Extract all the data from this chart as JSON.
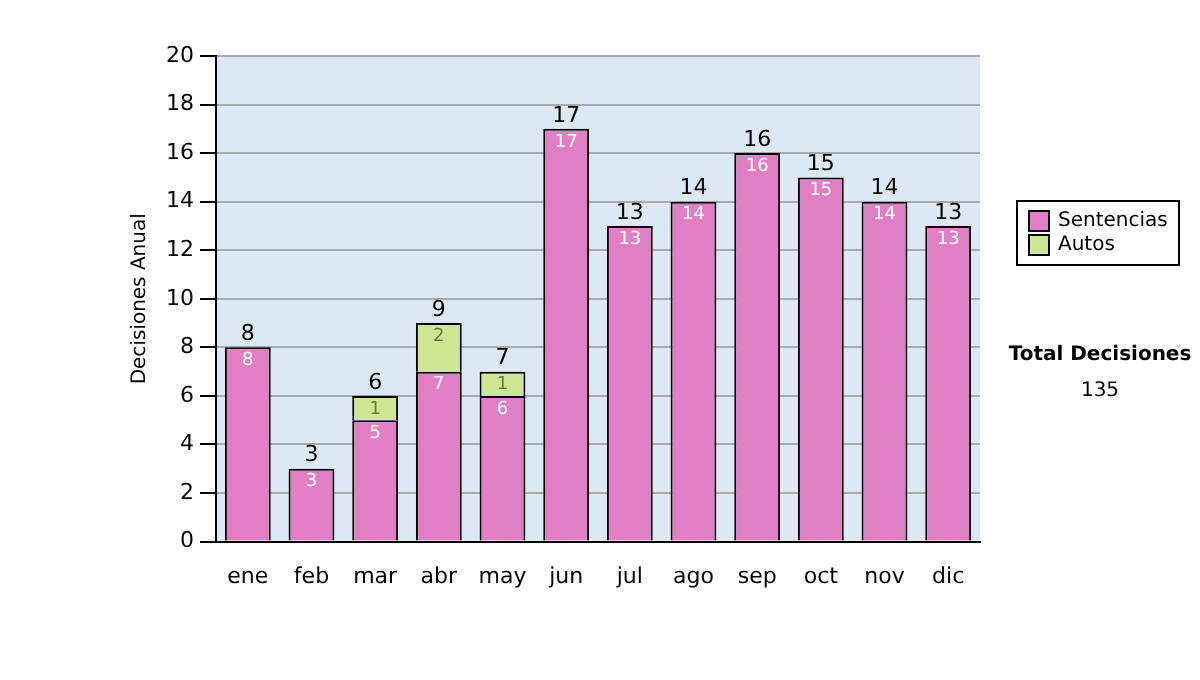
{
  "chart_data": {
    "type": "bar",
    "stacked": true,
    "ylabel": "Decisiones Anual",
    "categories": [
      "ene",
      "feb",
      "mar",
      "abr",
      "may",
      "jun",
      "jul",
      "ago",
      "sep",
      "oct",
      "nov",
      "dic"
    ],
    "series": [
      {
        "name": "Sentencias",
        "color": "#e07fc3",
        "values": [
          8,
          3,
          5,
          7,
          6,
          17,
          13,
          14,
          16,
          15,
          14,
          13
        ],
        "value_labels": [
          "8",
          "3",
          "5",
          "7",
          "6",
          "17",
          "13",
          "14",
          "16",
          "15",
          "14",
          "13"
        ]
      },
      {
        "name": "Autos",
        "color": "#cfe594",
        "values": [
          0,
          0,
          1,
          2,
          1,
          0,
          0,
          0,
          0,
          0,
          0,
          0
        ],
        "value_labels": [
          null,
          null,
          "1",
          "2",
          "1",
          null,
          null,
          null,
          null,
          null,
          null,
          null
        ]
      }
    ],
    "totals": [
      "8",
      "3",
      "6",
      "9",
      "7",
      "17",
      "13",
      "14",
      "16",
      "15",
      "14",
      "13"
    ],
    "ylim": [
      0,
      20
    ],
    "yticks": [
      0,
      2,
      4,
      6,
      8,
      10,
      12,
      14,
      16,
      18,
      20
    ],
    "grid": "y",
    "legend": "right",
    "annotations": [
      "Total Decisiones",
      "135"
    ]
  }
}
